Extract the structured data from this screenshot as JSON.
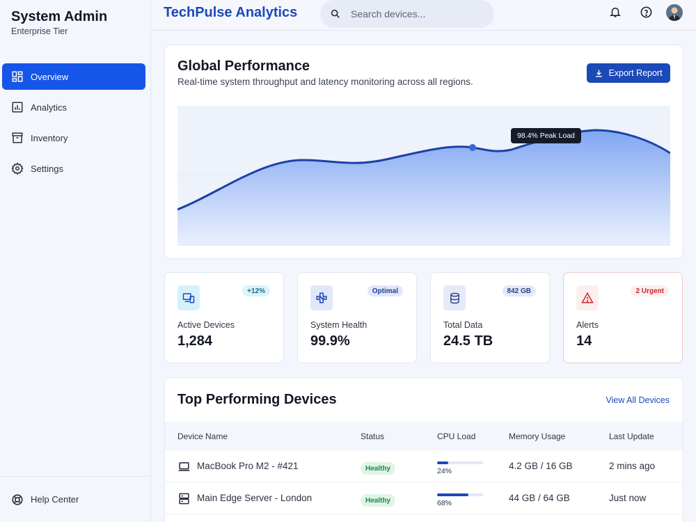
{
  "sidebar": {
    "title": "System Admin",
    "subtitle": "Enterprise Tier",
    "items": [
      {
        "label": "Overview",
        "icon": "dashboard-icon",
        "active": true
      },
      {
        "label": "Analytics",
        "icon": "bar-chart-icon",
        "active": false
      },
      {
        "label": "Inventory",
        "icon": "archive-icon",
        "active": false
      },
      {
        "label": "Settings",
        "icon": "gear-icon",
        "active": false
      }
    ],
    "help_label": "Help Center"
  },
  "header": {
    "title": "TechPulse Analytics",
    "search_placeholder": "Search devices..."
  },
  "performance": {
    "title": "Global Performance",
    "subtitle": "Real-time system throughput and latency monitoring across all regions.",
    "export_label": "Export Report",
    "peak_label": "98.4% Peak Load"
  },
  "stats": [
    {
      "label": "Active Devices",
      "value": "1,284",
      "badge": "+12%",
      "icon": "devices-icon"
    },
    {
      "label": "System Health",
      "value": "99.9%",
      "badge": "Optimal",
      "icon": "health-icon"
    },
    {
      "label": "Total Data",
      "value": "24.5 TB",
      "badge": "842 GB",
      "icon": "database-icon"
    },
    {
      "label": "Alerts",
      "value": "14",
      "badge": "2 Urgent",
      "icon": "warning-icon"
    }
  ],
  "devices": {
    "title": "Top Performing Devices",
    "view_all": "View All Devices",
    "columns": [
      "Device Name",
      "Status",
      "CPU Load",
      "Memory Usage",
      "Last Update"
    ],
    "rows": [
      {
        "name": "MacBook Pro M2 - #421",
        "icon": "laptop-icon",
        "status": "Healthy",
        "cpu": "24%",
        "cpu_fraction": 0.24,
        "memory": "4.2 GB / 16 GB",
        "updated": "2 mins ago"
      },
      {
        "name": "Main Edge Server - London",
        "icon": "server-icon",
        "status": "Healthy",
        "cpu": "68%",
        "cpu_fraction": 0.68,
        "memory": "44 GB / 64 GB",
        "updated": "Just now"
      }
    ]
  },
  "colors": {
    "primary": "#1556e8",
    "accent": "#1c49b8",
    "healthy": "#1f8a47",
    "alert": "#c62828"
  }
}
